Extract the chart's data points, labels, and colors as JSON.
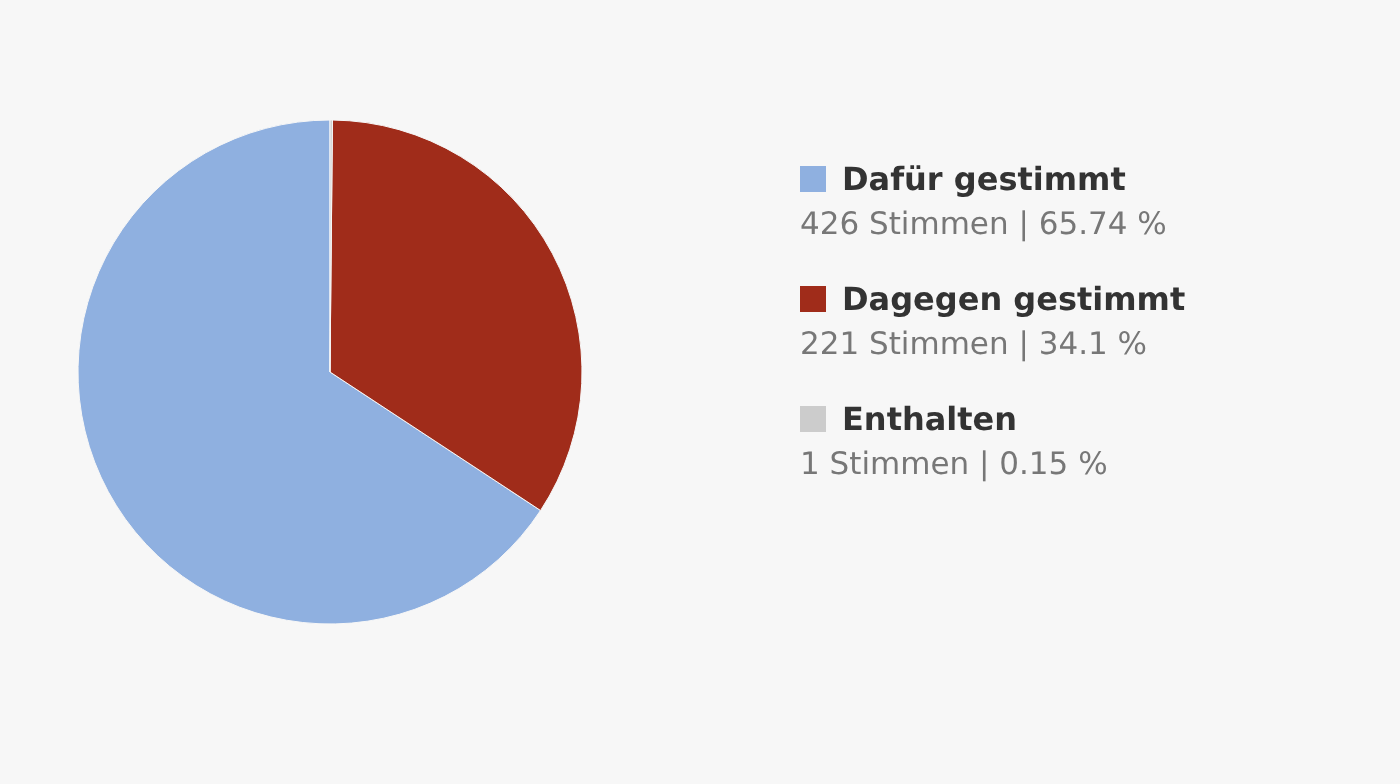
{
  "chart_data": {
    "type": "pie",
    "categories": [
      "Dafür gestimmt",
      "Dagegen gestimmt",
      "Enthalten"
    ],
    "values": [
      426,
      221,
      1
    ],
    "colors": [
      "#8fb0e0",
      "#a02c1a",
      "#cccccc"
    ],
    "value_labels": [
      "426 Stimmen | 65.74 %",
      "221 Stimmen | 34.1 %",
      "1 Stimmen | 0.15 %"
    ],
    "legend": "right"
  }
}
